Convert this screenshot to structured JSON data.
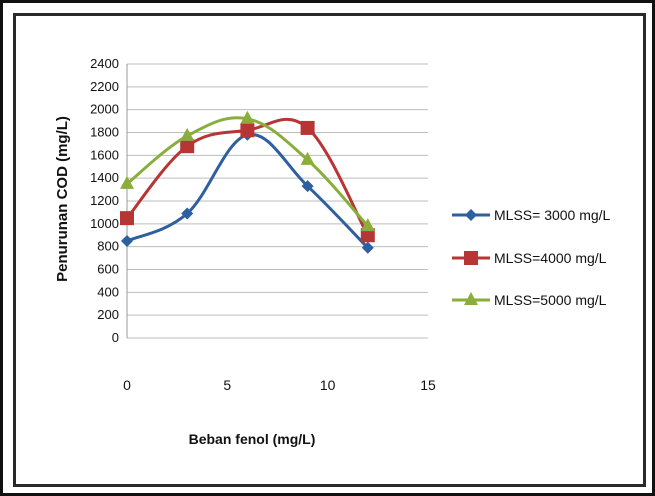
{
  "chart_data": {
    "type": "line",
    "xlabel": "Beban fenol (mg/L)",
    "ylabel": "Penurunan COD  (mg/L)",
    "xlim": [
      0,
      15
    ],
    "ylim": [
      0,
      2400
    ],
    "xticks": [
      "0",
      "5",
      "10",
      "15"
    ],
    "yticks": [
      "0",
      "200",
      "400",
      "600",
      "800",
      "1000",
      "1200",
      "1400",
      "1600",
      "1800",
      "2000",
      "2200",
      "2400"
    ],
    "grid": "horizontal",
    "legend_position": "right",
    "series": [
      {
        "name": "MLSS= 3000 mg/L",
        "color": "#2e5f9e",
        "marker": "diamond",
        "x": [
          0,
          3,
          6,
          9,
          12
        ],
        "y": [
          850,
          1090,
          1780,
          1330,
          790
        ]
      },
      {
        "name": "MLSS=4000 mg/L",
        "color": "#b83535",
        "marker": "square",
        "x": [
          0,
          3,
          6,
          9,
          12
        ],
        "y": [
          1050,
          1680,
          1820,
          1840,
          900
        ]
      },
      {
        "name": "MLSS=5000 mg/L",
        "color": "#8aae3c",
        "marker": "triangle",
        "x": [
          0,
          3,
          6,
          9,
          12
        ],
        "y": [
          1350,
          1770,
          1920,
          1560,
          980
        ]
      }
    ]
  }
}
